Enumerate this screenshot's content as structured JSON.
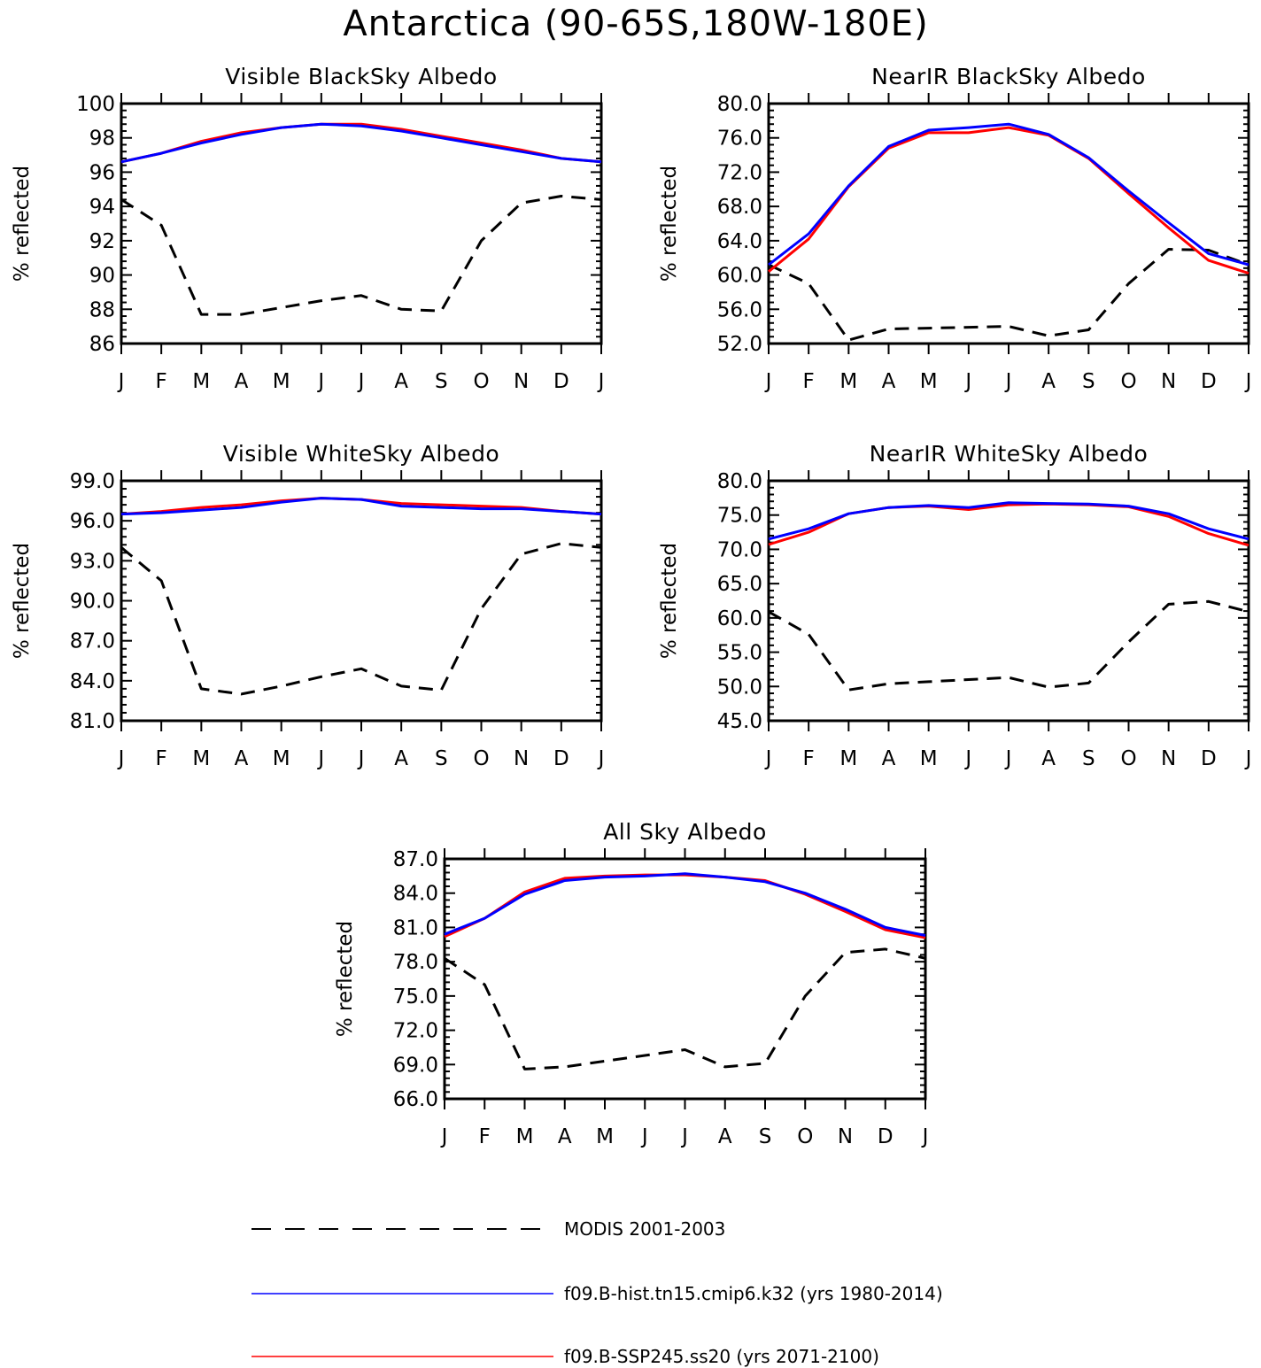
{
  "title": "Antarctica (90-65S,180W-180E)",
  "colors": {
    "modis": "#000000",
    "hist": "#0000ff",
    "ssp": "#ff0000"
  },
  "legend": {
    "items": [
      {
        "label": "MODIS 2001-2003",
        "style": "dashed",
        "color": "#000000"
      },
      {
        "label": "f09.B-hist.tn15.cmip6.k32 (yrs 1980-2014)",
        "style": "solid",
        "color": "#0000ff"
      },
      {
        "label": "f09.B-SSP245.ss20 (yrs 2071-2100)",
        "style": "solid",
        "color": "#ff0000"
      }
    ]
  },
  "chart_data": [
    {
      "type": "line",
      "title": "Visible BlackSky Albedo",
      "ylabel": "% reflected",
      "x": [
        "J",
        "F",
        "M",
        "A",
        "M",
        "J",
        "J",
        "A",
        "S",
        "O",
        "N",
        "D",
        "J"
      ],
      "ylim": [
        86,
        100
      ],
      "yticks": [
        "86",
        "88",
        "90",
        "92",
        "94",
        "96",
        "98",
        "100"
      ],
      "yticks_values": [
        86,
        88,
        90,
        92,
        94,
        96,
        98,
        100
      ],
      "series": [
        {
          "name": "MODIS 2001-2003",
          "values": [
            94.4,
            92.9,
            87.7,
            87.7,
            88.1,
            88.5,
            88.8,
            88.0,
            87.9,
            92.0,
            94.2,
            94.6,
            94.4
          ]
        },
        {
          "name": "f09.B-hist.tn15.cmip6.k32 (yrs 1980-2014)",
          "values": [
            96.6,
            97.1,
            97.7,
            98.2,
            98.6,
            98.8,
            98.7,
            98.4,
            98.0,
            97.6,
            97.2,
            96.8,
            96.6
          ]
        },
        {
          "name": "f09.B-SSP245.ss20 (yrs 2071-2100)",
          "values": [
            96.6,
            97.1,
            97.8,
            98.3,
            98.6,
            98.8,
            98.8,
            98.5,
            98.1,
            97.7,
            97.3,
            96.8,
            96.6
          ]
        }
      ]
    },
    {
      "type": "line",
      "title": "NearIR BlackSky Albedo",
      "ylabel": "% reflected",
      "x": [
        "J",
        "F",
        "M",
        "A",
        "M",
        "J",
        "J",
        "A",
        "S",
        "O",
        "N",
        "D",
        "J"
      ],
      "ylim": [
        52,
        80
      ],
      "yticks": [
        "52.0",
        "56.0",
        "60.0",
        "64.0",
        "68.0",
        "72.0",
        "76.0",
        "80.0"
      ],
      "yticks_values": [
        52,
        56,
        60,
        64,
        68,
        72,
        76,
        80
      ],
      "series": [
        {
          "name": "MODIS 2001-2003",
          "values": [
            61.2,
            59.0,
            52.4,
            53.7,
            53.8,
            53.9,
            54.0,
            52.9,
            53.6,
            59.0,
            63.0,
            62.9,
            61.2
          ]
        },
        {
          "name": "f09.B-hist.tn15.cmip6.k32 (yrs 1980-2014)",
          "values": [
            61.2,
            64.8,
            70.4,
            75.0,
            76.9,
            77.2,
            77.6,
            76.4,
            73.7,
            69.8,
            66.1,
            62.5,
            61.2
          ]
        },
        {
          "name": "f09.B-SSP245.ss20 (yrs 2071-2100)",
          "values": [
            60.4,
            64.2,
            70.3,
            74.8,
            76.6,
            76.6,
            77.2,
            76.3,
            73.6,
            69.5,
            65.5,
            61.7,
            60.2
          ]
        }
      ]
    },
    {
      "type": "line",
      "title": "Visible WhiteSky Albedo",
      "ylabel": "% reflected",
      "x": [
        "J",
        "F",
        "M",
        "A",
        "M",
        "J",
        "J",
        "A",
        "S",
        "O",
        "N",
        "D",
        "J"
      ],
      "ylim": [
        81,
        99
      ],
      "yticks": [
        "81.0",
        "84.0",
        "87.0",
        "90.0",
        "93.0",
        "96.0",
        "99.0"
      ],
      "yticks_values": [
        81,
        84,
        87,
        90,
        93,
        96,
        99
      ],
      "series": [
        {
          "name": "MODIS 2001-2003",
          "values": [
            94.0,
            91.5,
            83.4,
            83.0,
            83.6,
            84.3,
            84.9,
            83.6,
            83.3,
            89.4,
            93.5,
            94.3,
            94.0
          ]
        },
        {
          "name": "f09.B-hist.tn15.cmip6.k32 (yrs 1980-2014)",
          "values": [
            96.5,
            96.6,
            96.8,
            97.0,
            97.4,
            97.7,
            97.6,
            97.1,
            97.0,
            96.9,
            96.9,
            96.7,
            96.5
          ]
        },
        {
          "name": "f09.B-SSP245.ss20 (yrs 2071-2100)",
          "values": [
            96.5,
            96.7,
            97.0,
            97.2,
            97.5,
            97.7,
            97.6,
            97.3,
            97.2,
            97.1,
            97.0,
            96.7,
            96.5
          ]
        }
      ]
    },
    {
      "type": "line",
      "title": "NearIR WhiteSky Albedo",
      "ylabel": "% reflected",
      "x": [
        "J",
        "F",
        "M",
        "A",
        "M",
        "J",
        "J",
        "A",
        "S",
        "O",
        "N",
        "D",
        "J"
      ],
      "ylim": [
        45,
        80
      ],
      "yticks": [
        "45.0",
        "50.0",
        "55.0",
        "60.0",
        "65.0",
        "70.0",
        "75.0",
        "80.0"
      ],
      "yticks_values": [
        45,
        50,
        55,
        60,
        65,
        70,
        75,
        80
      ],
      "series": [
        {
          "name": "MODIS 2001-2003",
          "values": [
            60.9,
            57.6,
            49.5,
            50.4,
            50.7,
            51.0,
            51.3,
            49.9,
            50.5,
            56.5,
            62.0,
            62.4,
            60.9
          ]
        },
        {
          "name": "f09.B-hist.tn15.cmip6.k32 (yrs 1980-2014)",
          "values": [
            71.5,
            73.0,
            75.2,
            76.1,
            76.4,
            76.1,
            76.8,
            76.7,
            76.6,
            76.3,
            75.2,
            73.0,
            71.5
          ]
        },
        {
          "name": "f09.B-SSP245.ss20 (yrs 2071-2100)",
          "values": [
            70.7,
            72.5,
            75.2,
            76.1,
            76.3,
            75.8,
            76.5,
            76.6,
            76.5,
            76.2,
            74.8,
            72.3,
            70.6
          ]
        }
      ]
    },
    {
      "type": "line",
      "title": "All Sky Albedo",
      "ylabel": "% reflected",
      "x": [
        "J",
        "F",
        "M",
        "A",
        "M",
        "J",
        "J",
        "A",
        "S",
        "O",
        "N",
        "D",
        "J"
      ],
      "ylim": [
        66,
        87
      ],
      "yticks": [
        "66.0",
        "69.0",
        "72.0",
        "75.0",
        "78.0",
        "81.0",
        "84.0",
        "87.0"
      ],
      "yticks_values": [
        66,
        69,
        72,
        75,
        78,
        81,
        84,
        87
      ],
      "series": [
        {
          "name": "MODIS 2001-2003",
          "values": [
            78.3,
            76.0,
            68.6,
            68.8,
            69.3,
            69.8,
            70.3,
            68.8,
            69.1,
            75.0,
            78.8,
            79.1,
            78.3
          ]
        },
        {
          "name": "f09.B-hist.tn15.cmip6.k32 (yrs 1980-2014)",
          "values": [
            80.4,
            81.8,
            83.9,
            85.1,
            85.4,
            85.5,
            85.7,
            85.4,
            85.0,
            84.0,
            82.6,
            81.0,
            80.3
          ]
        },
        {
          "name": "f09.B-SSP245.ss20 (yrs 2071-2100)",
          "values": [
            80.2,
            81.8,
            84.1,
            85.3,
            85.5,
            85.6,
            85.6,
            85.4,
            85.1,
            83.9,
            82.4,
            80.8,
            80.1
          ]
        }
      ]
    }
  ]
}
